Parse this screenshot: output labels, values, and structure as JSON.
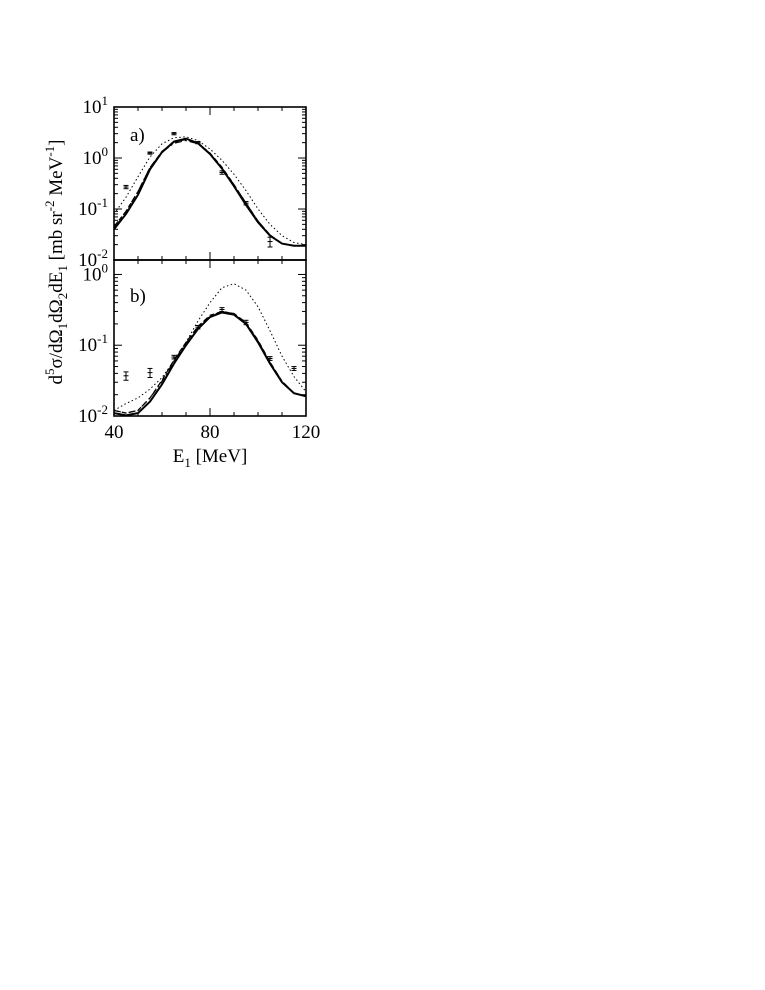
{
  "chart_data": [
    {
      "type": "line",
      "panel_label": "a)",
      "x_scale": "linear",
      "y_scale": "log",
      "xlim": [
        40,
        120
      ],
      "ylim": [
        0.01,
        10
      ],
      "y_ticks": [
        {
          "value": 10,
          "base": "10",
          "exp": "1"
        },
        {
          "value": 1,
          "base": "10",
          "exp": "0"
        },
        {
          "value": 0.1,
          "base": "10",
          "exp": "-1"
        },
        {
          "value": 0.01,
          "base": "10",
          "exp": "-2"
        }
      ],
      "series": [
        {
          "style": "solid",
          "x": [
            40,
            45,
            50,
            55,
            60,
            65,
            70,
            75,
            80,
            85,
            90,
            95,
            100,
            105,
            110,
            115,
            120
          ],
          "y": [
            0.04,
            0.08,
            0.19,
            0.6,
            1.3,
            2.1,
            2.4,
            1.95,
            1.2,
            0.62,
            0.28,
            0.12,
            0.055,
            0.03,
            0.021,
            0.019,
            0.019
          ]
        },
        {
          "style": "dash-dot",
          "x": [
            40,
            45,
            50,
            55,
            60,
            65,
            70,
            75,
            80,
            85,
            90,
            95,
            100,
            105,
            110,
            115,
            120
          ],
          "y": [
            0.045,
            0.09,
            0.22,
            0.65,
            1.3,
            1.95,
            2.2,
            1.9,
            1.2,
            0.64,
            0.3,
            0.13,
            0.058,
            0.031,
            0.021,
            0.019,
            0.019
          ]
        },
        {
          "style": "dashed",
          "x": [
            40,
            45,
            50,
            55,
            60,
            65,
            70,
            75,
            80,
            85,
            90,
            95,
            100,
            105,
            110,
            115,
            120
          ],
          "y": [
            0.045,
            0.09,
            0.22,
            0.65,
            1.35,
            2.05,
            2.3,
            1.95,
            1.25,
            0.66,
            0.3,
            0.13,
            0.058,
            0.031,
            0.021,
            0.019,
            0.019
          ]
        },
        {
          "style": "dotted",
          "x": [
            40,
            45,
            50,
            55,
            60,
            65,
            70,
            75,
            80,
            85,
            90,
            95,
            100,
            105,
            110,
            115,
            120
          ],
          "y": [
            0.08,
            0.17,
            0.43,
            1.05,
            1.9,
            2.5,
            2.6,
            2.2,
            1.5,
            0.9,
            0.48,
            0.23,
            0.1,
            0.05,
            0.03,
            0.022,
            0.02
          ]
        }
      ],
      "points": [
        {
          "x": 45,
          "y": 0.27,
          "err": 0.02
        },
        {
          "x": 55,
          "y": 1.25,
          "err": 0.06
        },
        {
          "x": 65,
          "y": 3.0,
          "err": 0.15
        },
        {
          "x": 75,
          "y": 2.0,
          "err": 0.1
        },
        {
          "x": 85,
          "y": 0.52,
          "err": 0.04
        },
        {
          "x": 95,
          "y": 0.13,
          "err": 0.01
        },
        {
          "x": 105,
          "y": 0.023,
          "err": 0.005
        }
      ]
    },
    {
      "type": "line",
      "panel_label": "b)",
      "x_scale": "linear",
      "y_scale": "log",
      "xlim": [
        40,
        120
      ],
      "ylim": [
        0.01,
        1.6
      ],
      "y_ticks": [
        {
          "value": 1,
          "base": "10",
          "exp": "0"
        },
        {
          "value": 0.1,
          "base": "10",
          "exp": "-1"
        },
        {
          "value": 0.01,
          "base": "10",
          "exp": "-2"
        }
      ],
      "series": [
        {
          "style": "solid",
          "x": [
            40,
            45,
            50,
            55,
            60,
            65,
            70,
            75,
            80,
            85,
            90,
            95,
            100,
            105,
            110,
            115,
            120
          ],
          "y": [
            0.011,
            0.0102,
            0.011,
            0.016,
            0.028,
            0.055,
            0.1,
            0.17,
            0.25,
            0.29,
            0.27,
            0.2,
            0.11,
            0.055,
            0.03,
            0.021,
            0.019
          ]
        },
        {
          "style": "dash-dot",
          "x": [
            40,
            45,
            50,
            55,
            60,
            65,
            70,
            75,
            80,
            85,
            90,
            95,
            100,
            105,
            110,
            115,
            120
          ],
          "y": [
            0.012,
            0.011,
            0.012,
            0.018,
            0.031,
            0.06,
            0.107,
            0.18,
            0.26,
            0.3,
            0.28,
            0.205,
            0.115,
            0.057,
            0.031,
            0.021,
            0.019
          ]
        },
        {
          "style": "dashed",
          "x": [
            40,
            45,
            50,
            55,
            60,
            65,
            70,
            75,
            80,
            85,
            90,
            95,
            100,
            105,
            110,
            115,
            120
          ],
          "y": [
            0.012,
            0.011,
            0.012,
            0.018,
            0.032,
            0.062,
            0.11,
            0.185,
            0.265,
            0.3,
            0.28,
            0.21,
            0.118,
            0.058,
            0.031,
            0.021,
            0.019
          ]
        },
        {
          "style": "dotted",
          "x": [
            40,
            45,
            50,
            55,
            60,
            65,
            70,
            75,
            80,
            85,
            90,
            95,
            100,
            105,
            110,
            115,
            120
          ],
          "y": [
            0.012,
            0.015,
            0.018,
            0.024,
            0.035,
            0.06,
            0.11,
            0.22,
            0.4,
            0.65,
            0.74,
            0.6,
            0.35,
            0.16,
            0.07,
            0.036,
            0.022
          ]
        }
      ],
      "points": [
        {
          "x": 45,
          "y": 0.037,
          "err": 0.005
        },
        {
          "x": 55,
          "y": 0.041,
          "err": 0.006
        },
        {
          "x": 65,
          "y": 0.068,
          "err": 0.004
        },
        {
          "x": 75,
          "y": 0.18,
          "err": 0.01
        },
        {
          "x": 85,
          "y": 0.32,
          "err": 0.02
        },
        {
          "x": 95,
          "y": 0.21,
          "err": 0.015
        },
        {
          "x": 105,
          "y": 0.065,
          "err": 0.004
        },
        {
          "x": 115,
          "y": 0.047,
          "err": 0.003
        }
      ]
    }
  ],
  "x_axis": {
    "ticks": [
      "40",
      "80",
      "120"
    ],
    "label_main": "E",
    "label_sub": "1",
    "label_unit": " [MeV]"
  },
  "y_axis": {
    "label_parts": [
      {
        "t": "d"
      },
      {
        "t": "5",
        "sup": true
      },
      {
        "t": "σ/dΩ"
      },
      {
        "t": "1",
        "sub": true
      },
      {
        "t": "dΩ"
      },
      {
        "t": "2",
        "sub": true
      },
      {
        "t": "dE"
      },
      {
        "t": "1",
        "sub": true
      },
      {
        "t": " [mb sr"
      },
      {
        "t": "-2",
        "sup": true
      },
      {
        "t": " MeV"
      },
      {
        "t": "-1",
        "sup": true
      },
      {
        "t": "]"
      }
    ]
  }
}
